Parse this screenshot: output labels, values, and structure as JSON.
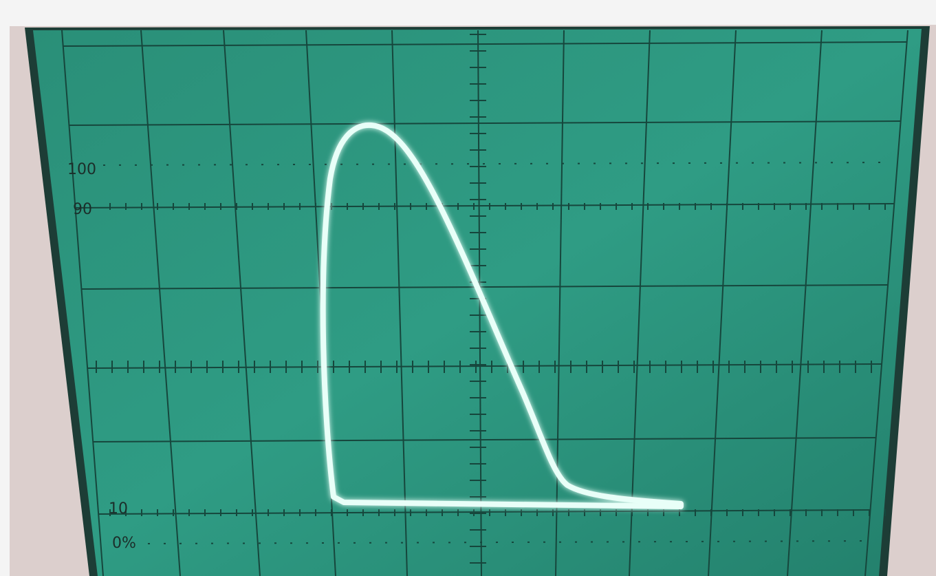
{
  "screen": {
    "labels": [
      "100",
      "90",
      "10",
      "0%"
    ]
  }
}
